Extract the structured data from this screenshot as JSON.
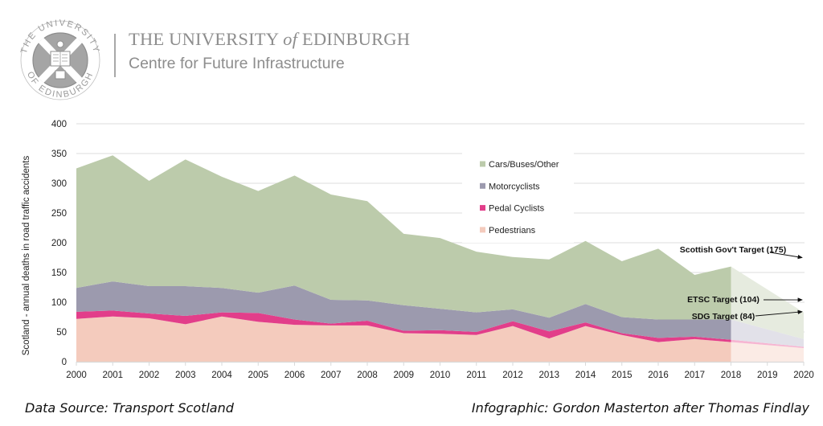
{
  "header": {
    "university_title_pre": "THE UNIVERSITY",
    "university_title_of": "of",
    "university_title_post": "EDINBURGH",
    "subtitle": "Centre for Future Infrastructure",
    "seal_text": "THE UNIVERSITY OF EDINBURGH"
  },
  "footer": {
    "source": "Data Source: Transport Scotland",
    "credit": "Infographic: Gordon Masterton after Thomas Findlay"
  },
  "colors": {
    "cars": "#bccbab",
    "motorcyclists": "#9c9aae",
    "pedal_cyclists": "#e23e8a",
    "pedestrians": "#f4cbbd",
    "cars_proj": "#e6ebdf",
    "motorcyclists_proj": "#e2e1e9",
    "pedal_cyclists_proj": "#f6b6d2",
    "pedestrians_proj": "#fbebe5",
    "grid": "#e3e3e3",
    "logo": "#9a9a9a"
  },
  "chart_data": {
    "type": "area",
    "stacked": true,
    "title": "",
    "xlabel": "",
    "ylabel": "Scotland - annual deaths in road traffic accidents",
    "ylim": [
      0,
      400
    ],
    "yticks": [
      0,
      50,
      100,
      150,
      200,
      250,
      300,
      350,
      400
    ],
    "xlim": [
      2000,
      2020
    ],
    "xticks": [
      "2000",
      "2001",
      "2002",
      "2003",
      "2004",
      "2005",
      "2006",
      "2007",
      "2008",
      "2009",
      "2010",
      "2011",
      "2012",
      "2013",
      "2014",
      "2015",
      "2016",
      "2017",
      "2018",
      "2019",
      "2020"
    ],
    "grid": true,
    "legend_position": "upper-center-right",
    "x": [
      2000,
      2001,
      2002,
      2003,
      2004,
      2005,
      2006,
      2007,
      2008,
      2009,
      2010,
      2011,
      2012,
      2013,
      2014,
      2015,
      2016,
      2017,
      2018
    ],
    "series": [
      {
        "name": "Pedestrians",
        "key": "pedestrians",
        "values": [
          72,
          76,
          73,
          63,
          76,
          67,
          62,
          61,
          61,
          48,
          47,
          45,
          60,
          39,
          60,
          45,
          33,
          38,
          33
        ]
      },
      {
        "name": "Pedal Cyclists",
        "key": "pedal_cyclists",
        "values": [
          12,
          10,
          8,
          14,
          7,
          15,
          9,
          3,
          8,
          4,
          6,
          5,
          8,
          12,
          6,
          3,
          7,
          4,
          4
        ]
      },
      {
        "name": "Motorcyclists",
        "key": "motorcyclists",
        "values": [
          40,
          49,
          46,
          50,
          41,
          34,
          57,
          40,
          34,
          43,
          36,
          33,
          20,
          23,
          31,
          27,
          31,
          29,
          34
        ]
      },
      {
        "name": "Cars/Buses/Other",
        "key": "cars",
        "values": [
          201,
          212,
          177,
          213,
          187,
          171,
          185,
          177,
          167,
          120,
          119,
          102,
          88,
          98,
          106,
          94,
          119,
          75,
          89
        ]
      }
    ],
    "legend_order": [
      "Cars/Buses/Other",
      "Motorcyclists",
      "Pedal Cyclists",
      "Pedestrians"
    ],
    "projection": {
      "x": [
        2018,
        2020
      ],
      "series": [
        {
          "key": "pedestrians",
          "values": [
            33,
            23
          ]
        },
        {
          "key": "pedal_cyclists",
          "values": [
            4,
            2
          ]
        },
        {
          "key": "motorcyclists",
          "values": [
            34,
            13
          ]
        },
        {
          "key": "cars",
          "values": [
            89,
            45
          ]
        }
      ]
    },
    "annotations": [
      {
        "text": "Scottish Gov't Target (175)",
        "target_value": 175,
        "target_year": 2020
      },
      {
        "text": "ETSC Target (104)",
        "target_value": 104,
        "target_year": 2020
      },
      {
        "text": "SDG Target (84)",
        "target_value": 84,
        "target_year": 2020
      }
    ]
  }
}
